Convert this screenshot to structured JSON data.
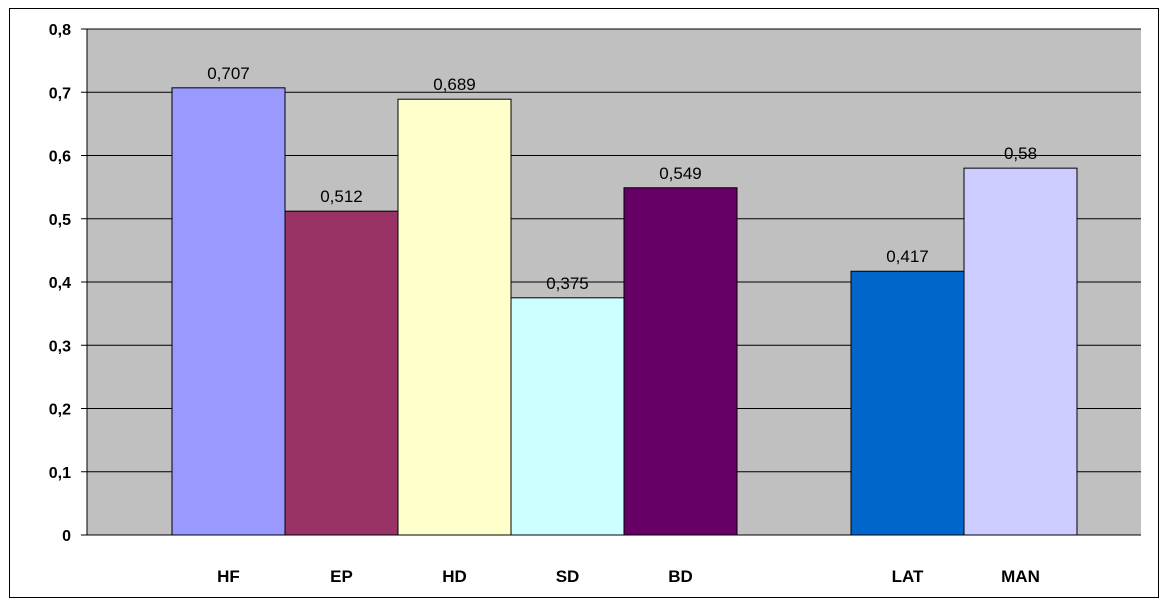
{
  "chart_data": {
    "type": "bar",
    "categories": [
      "HF",
      "EP",
      "HD",
      "SD",
      "BD",
      "LAT",
      "MAN"
    ],
    "values": [
      0.707,
      0.512,
      0.689,
      0.375,
      0.549,
      0.417,
      0.58
    ],
    "data_labels": [
      "0,707",
      "0,512",
      "0,689",
      "0,375",
      "0,549",
      "0,417",
      "0,58"
    ],
    "colors": [
      "#9999FF",
      "#993366",
      "#FFFFCC",
      "#CCFFFF",
      "#660066",
      "#0066CC",
      "#CCCCFF"
    ],
    "groups": [
      [
        0,
        1,
        2,
        3,
        4
      ],
      [
        5,
        6
      ]
    ],
    "ylim": [
      0,
      0.8
    ],
    "yticks": [
      0,
      0.1,
      0.2,
      0.3,
      0.4,
      0.5,
      0.6,
      0.7,
      0.8
    ],
    "ytick_labels": [
      "0",
      "0,1",
      "0,2",
      "0,3",
      "0,4",
      "0,5",
      "0,6",
      "0,7",
      "0,8"
    ],
    "grid": true,
    "plot_background": "#C0C0C0",
    "title": "",
    "xlabel": "",
    "ylabel": ""
  }
}
